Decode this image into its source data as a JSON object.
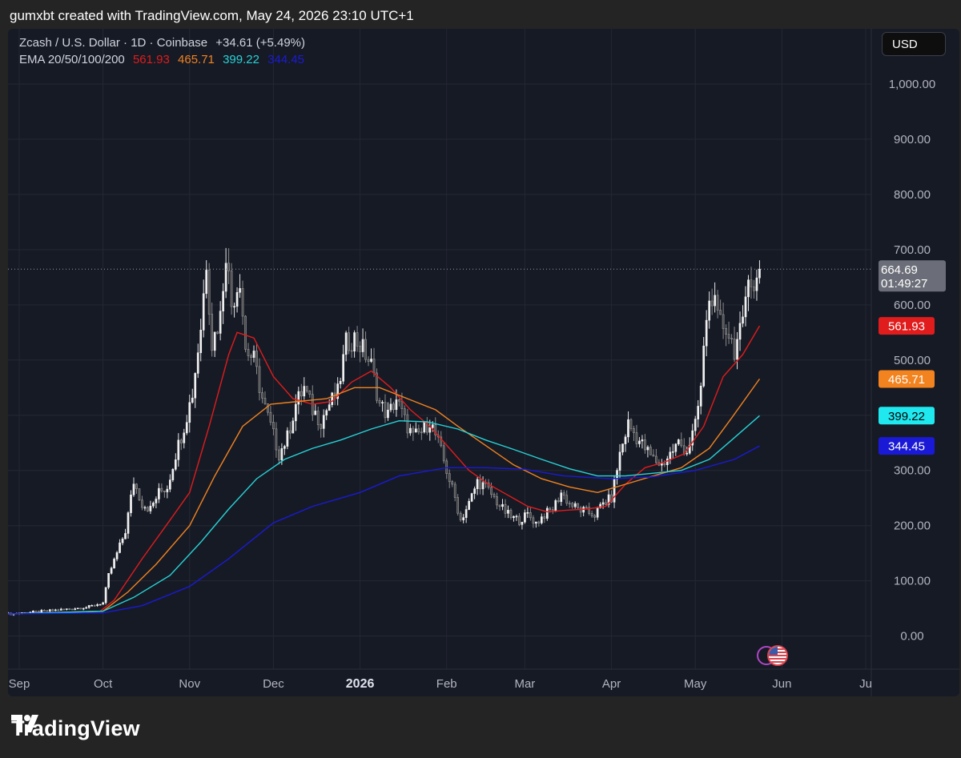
{
  "header": {
    "credit": "gumxbt created with TradingView.com, May 24, 2026 23:10 UTC+1"
  },
  "legend": {
    "symbol": "Zcash / U.S. Dollar · 1D · Coinbase",
    "change": "+34.61 (+5.49%)",
    "ema_label": "EMA 20/50/100/200",
    "ema_values": [
      "561.93",
      "465.71",
      "399.22",
      "344.45"
    ]
  },
  "currency": "USD",
  "brand": "TradingView",
  "colors": {
    "background": "#161a25",
    "grid": "#242833",
    "candle": "#d9d9d9",
    "ema20": "#e01c1c",
    "ema50": "#f2831f",
    "ema100": "#27d3d6",
    "ema200": "#1a1ad6"
  },
  "price_label": {
    "price": "664.69",
    "countdown": "01:49:27"
  },
  "chart_data": {
    "type": "candlestick",
    "y_axis": {
      "ticks": [
        0,
        100,
        200,
        300,
        400,
        500,
        600,
        700,
        800,
        900,
        1000
      ],
      "tick_labels": [
        "0.00",
        "100.00",
        "200.00",
        "300.00",
        "400.00",
        "500.00",
        "600.00",
        "700.00",
        "800.00",
        "900.00",
        "1,000.00"
      ],
      "range": [
        -60,
        1100
      ]
    },
    "x_axis": {
      "range": [
        "2025-08-28",
        "2026-07-03"
      ],
      "ticks": [
        {
          "date": "2025-09-01",
          "label": "Sep",
          "bold": false
        },
        {
          "date": "2025-10-01",
          "label": "Oct",
          "bold": false
        },
        {
          "date": "2025-11-01",
          "label": "Nov",
          "bold": false
        },
        {
          "date": "2025-12-01",
          "label": "Dec",
          "bold": false
        },
        {
          "date": "2026-01-01",
          "label": "2026",
          "bold": true
        },
        {
          "date": "2026-02-01",
          "label": "Feb",
          "bold": false
        },
        {
          "date": "2026-03-01",
          "label": "Mar",
          "bold": false
        },
        {
          "date": "2026-04-01",
          "label": "Apr",
          "bold": false
        },
        {
          "date": "2026-05-01",
          "label": "May",
          "bold": false
        },
        {
          "date": "2026-06-01",
          "label": "Jun",
          "bold": false
        },
        {
          "date": "2026-07-01",
          "label": "Ju",
          "bold": false
        }
      ]
    },
    "close_path": [
      [
        "2025-08-28",
        40
      ],
      [
        "2025-09-10",
        45
      ],
      [
        "2025-09-25",
        52
      ],
      [
        "2025-10-01",
        60
      ],
      [
        "2025-10-03",
        110
      ],
      [
        "2025-10-06",
        150
      ],
      [
        "2025-10-09",
        190
      ],
      [
        "2025-10-12",
        280
      ],
      [
        "2025-10-15",
        240
      ],
      [
        "2025-10-18",
        230
      ],
      [
        "2025-10-21",
        260
      ],
      [
        "2025-10-24",
        270
      ],
      [
        "2025-10-27",
        330
      ],
      [
        "2025-10-30",
        380
      ],
      [
        "2025-11-02",
        440
      ],
      [
        "2025-11-05",
        560
      ],
      [
        "2025-11-07",
        680
      ],
      [
        "2025-11-09",
        530
      ],
      [
        "2025-11-12",
        580
      ],
      [
        "2025-11-14",
        700
      ],
      [
        "2025-11-16",
        600
      ],
      [
        "2025-11-19",
        650
      ],
      [
        "2025-11-21",
        520
      ],
      [
        "2025-11-24",
        500
      ],
      [
        "2025-11-27",
        430
      ],
      [
        "2025-11-30",
        380
      ],
      [
        "2025-12-03",
        330
      ],
      [
        "2025-12-06",
        360
      ],
      [
        "2025-12-09",
        420
      ],
      [
        "2025-12-12",
        450
      ],
      [
        "2025-12-15",
        410
      ],
      [
        "2025-12-18",
        390
      ],
      [
        "2025-12-21",
        420
      ],
      [
        "2025-12-24",
        440
      ],
      [
        "2025-12-27",
        530
      ],
      [
        "2025-12-30",
        540
      ],
      [
        "2026-01-02",
        520
      ],
      [
        "2026-01-05",
        490
      ],
      [
        "2026-01-08",
        420
      ],
      [
        "2026-01-11",
        400
      ],
      [
        "2026-01-14",
        430
      ],
      [
        "2026-01-17",
        390
      ],
      [
        "2026-01-20",
        360
      ],
      [
        "2026-01-23",
        370
      ],
      [
        "2026-01-26",
        390
      ],
      [
        "2026-01-29",
        350
      ],
      [
        "2026-02-01",
        300
      ],
      [
        "2026-02-04",
        250
      ],
      [
        "2026-02-06",
        210
      ],
      [
        "2026-02-09",
        240
      ],
      [
        "2026-02-12",
        280
      ],
      [
        "2026-02-15",
        270
      ],
      [
        "2026-02-18",
        250
      ],
      [
        "2026-02-21",
        230
      ],
      [
        "2026-02-24",
        215
      ],
      [
        "2026-02-27",
        210
      ],
      [
        "2026-03-02",
        220
      ],
      [
        "2026-03-05",
        205
      ],
      [
        "2026-03-08",
        220
      ],
      [
        "2026-03-11",
        230
      ],
      [
        "2026-03-14",
        260
      ],
      [
        "2026-03-17",
        240
      ],
      [
        "2026-03-20",
        230
      ],
      [
        "2026-03-23",
        225
      ],
      [
        "2026-03-26",
        220
      ],
      [
        "2026-03-29",
        240
      ],
      [
        "2026-04-01",
        250
      ],
      [
        "2026-04-04",
        330
      ],
      [
        "2026-04-07",
        385
      ],
      [
        "2026-04-10",
        360
      ],
      [
        "2026-04-13",
        340
      ],
      [
        "2026-04-16",
        320
      ],
      [
        "2026-04-19",
        310
      ],
      [
        "2026-04-22",
        330
      ],
      [
        "2026-04-25",
        350
      ],
      [
        "2026-04-28",
        335
      ],
      [
        "2026-05-01",
        380
      ],
      [
        "2026-05-03",
        450
      ],
      [
        "2026-05-05",
        580
      ],
      [
        "2026-05-07",
        620
      ],
      [
        "2026-05-09",
        570
      ],
      [
        "2026-05-12",
        560
      ],
      [
        "2026-05-15",
        520
      ],
      [
        "2026-05-18",
        560
      ],
      [
        "2026-05-20",
        670
      ],
      [
        "2026-05-22",
        620
      ],
      [
        "2026-05-24",
        664.69
      ]
    ],
    "ema": [
      {
        "name": "EMA 20",
        "color_key": "ema20",
        "points": [
          [
            "2025-08-28",
            40
          ],
          [
            "2025-09-30",
            45
          ],
          [
            "2025-10-05",
            65
          ],
          [
            "2025-10-15",
            140
          ],
          [
            "2025-10-25",
            210
          ],
          [
            "2025-11-01",
            260
          ],
          [
            "2025-11-08",
            380
          ],
          [
            "2025-11-15",
            510
          ],
          [
            "2025-11-18",
            550
          ],
          [
            "2025-11-24",
            540
          ],
          [
            "2025-12-01",
            470
          ],
          [
            "2025-12-08",
            430
          ],
          [
            "2025-12-15",
            420
          ],
          [
            "2025-12-22",
            425
          ],
          [
            "2025-12-29",
            460
          ],
          [
            "2026-01-05",
            480
          ],
          [
            "2026-01-12",
            450
          ],
          [
            "2026-01-19",
            410
          ],
          [
            "2026-01-26",
            380
          ],
          [
            "2026-02-02",
            340
          ],
          [
            "2026-02-09",
            300
          ],
          [
            "2026-02-16",
            275
          ],
          [
            "2026-02-23",
            255
          ],
          [
            "2026-03-02",
            235
          ],
          [
            "2026-03-09",
            225
          ],
          [
            "2026-03-16",
            228
          ],
          [
            "2026-03-23",
            230
          ],
          [
            "2026-03-30",
            235
          ],
          [
            "2026-04-06",
            275
          ],
          [
            "2026-04-13",
            305
          ],
          [
            "2026-04-20",
            315
          ],
          [
            "2026-04-27",
            330
          ],
          [
            "2026-05-04",
            380
          ],
          [
            "2026-05-11",
            470
          ],
          [
            "2026-05-18",
            510
          ],
          [
            "2026-05-24",
            561.93
          ]
        ]
      },
      {
        "name": "EMA 50",
        "color_key": "ema50",
        "points": [
          [
            "2025-08-28",
            40
          ],
          [
            "2025-10-01",
            45
          ],
          [
            "2025-10-10",
            80
          ],
          [
            "2025-10-20",
            130
          ],
          [
            "2025-11-01",
            200
          ],
          [
            "2025-11-10",
            290
          ],
          [
            "2025-11-20",
            380
          ],
          [
            "2025-11-30",
            420
          ],
          [
            "2025-12-10",
            425
          ],
          [
            "2025-12-20",
            430
          ],
          [
            "2025-12-30",
            450
          ],
          [
            "2026-01-08",
            450
          ],
          [
            "2026-01-18",
            430
          ],
          [
            "2026-01-28",
            410
          ],
          [
            "2026-02-05",
            380
          ],
          [
            "2026-02-15",
            345
          ],
          [
            "2026-02-25",
            310
          ],
          [
            "2026-03-07",
            285
          ],
          [
            "2026-03-17",
            270
          ],
          [
            "2026-03-27",
            260
          ],
          [
            "2026-04-06",
            275
          ],
          [
            "2026-04-16",
            290
          ],
          [
            "2026-04-26",
            305
          ],
          [
            "2026-05-06",
            340
          ],
          [
            "2026-05-14",
            395
          ],
          [
            "2026-05-24",
            465.71
          ]
        ]
      },
      {
        "name": "EMA 100",
        "color_key": "ema100",
        "points": [
          [
            "2025-08-28",
            40
          ],
          [
            "2025-10-01",
            45
          ],
          [
            "2025-10-12",
            70
          ],
          [
            "2025-10-25",
            110
          ],
          [
            "2025-11-05",
            170
          ],
          [
            "2025-11-15",
            230
          ],
          [
            "2025-11-25",
            285
          ],
          [
            "2025-12-05",
            320
          ],
          [
            "2025-12-15",
            340
          ],
          [
            "2025-12-25",
            355
          ],
          [
            "2026-01-05",
            375
          ],
          [
            "2026-01-15",
            390
          ],
          [
            "2026-01-25",
            388
          ],
          [
            "2026-02-05",
            375
          ],
          [
            "2026-02-15",
            355
          ],
          [
            "2026-02-25",
            338
          ],
          [
            "2026-03-07",
            320
          ],
          [
            "2026-03-17",
            303
          ],
          [
            "2026-03-27",
            290
          ],
          [
            "2026-04-06",
            290
          ],
          [
            "2026-04-16",
            295
          ],
          [
            "2026-04-26",
            300
          ],
          [
            "2026-05-06",
            320
          ],
          [
            "2026-05-14",
            355
          ],
          [
            "2026-05-24",
            399.22
          ]
        ]
      },
      {
        "name": "EMA 200",
        "color_key": "ema200",
        "points": [
          [
            "2025-08-28",
            40
          ],
          [
            "2025-10-01",
            42
          ],
          [
            "2025-10-15",
            55
          ],
          [
            "2025-11-01",
            90
          ],
          [
            "2025-11-15",
            140
          ],
          [
            "2025-12-01",
            205
          ],
          [
            "2025-12-15",
            235
          ],
          [
            "2026-01-01",
            260
          ],
          [
            "2026-01-15",
            290
          ],
          [
            "2026-02-01",
            305
          ],
          [
            "2026-02-15",
            305
          ],
          [
            "2026-03-01",
            302
          ],
          [
            "2026-03-15",
            290
          ],
          [
            "2026-04-01",
            285
          ],
          [
            "2026-04-15",
            288
          ],
          [
            "2026-05-01",
            300
          ],
          [
            "2026-05-15",
            320
          ],
          [
            "2026-05-24",
            344.45
          ]
        ]
      }
    ],
    "last_price": 664.69
  }
}
